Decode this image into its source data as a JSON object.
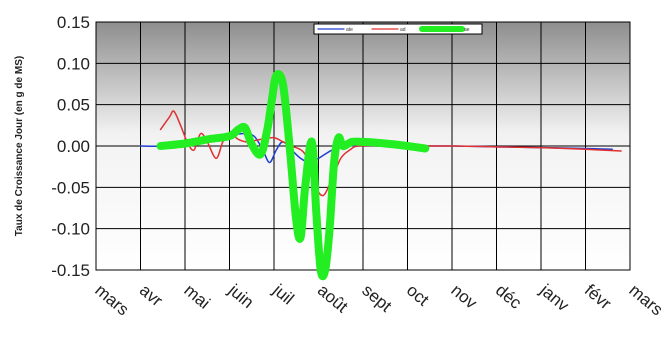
{
  "chart_data": {
    "type": "line",
    "ylabel": "Taux de Croissance Jour (en g de MS)",
    "ylim": [
      -0.15,
      0.15
    ],
    "yticks": [
      -0.15,
      -0.1,
      -0.05,
      0.0,
      0.05,
      0.1,
      0.15
    ],
    "ytick_labels": [
      "-0.15",
      "-0.10",
      "-0.05",
      "0.00",
      "0.05",
      "0.10",
      "0.15"
    ],
    "x_months": [
      "mars",
      "avr",
      "mai",
      "juin",
      "juil",
      "août",
      "sept",
      "oct",
      "nov",
      "déc",
      "janv",
      "févr",
      "mars"
    ],
    "xlim": [
      0,
      12
    ],
    "grid": true,
    "legend_position": "top-right",
    "legend_labels": [
      "ate",
      "ad",
      "ae"
    ],
    "series": [
      {
        "name": "ate",
        "color": "#1f3fd0",
        "width": 1.5,
        "points": [
          [
            1.0,
            0.0
          ],
          [
            1.5,
            0.0
          ],
          [
            2.0,
            0.005
          ],
          [
            2.5,
            0.01
          ],
          [
            3.0,
            0.013
          ],
          [
            3.3,
            0.015
          ],
          [
            3.55,
            0.012
          ],
          [
            3.75,
            -0.005
          ],
          [
            3.9,
            -0.02
          ],
          [
            4.05,
            -0.005
          ],
          [
            4.2,
            0.005
          ],
          [
            4.4,
            -0.005
          ],
          [
            4.6,
            -0.015
          ],
          [
            4.8,
            -0.02
          ],
          [
            5.0,
            -0.015
          ],
          [
            5.3,
            -0.005
          ],
          [
            5.6,
            0.0
          ],
          [
            6.0,
            0.0
          ],
          [
            7.0,
            0.0
          ],
          [
            8.0,
            0.0
          ],
          [
            9.0,
            -0.001
          ],
          [
            10.0,
            -0.002
          ],
          [
            11.0,
            -0.003
          ],
          [
            11.6,
            -0.004
          ]
        ]
      },
      {
        "name": "ad",
        "color": "#e03030",
        "width": 1.5,
        "points": [
          [
            1.45,
            0.02
          ],
          [
            1.65,
            0.035
          ],
          [
            1.75,
            0.042
          ],
          [
            1.9,
            0.025
          ],
          [
            2.05,
            0.005
          ],
          [
            2.2,
            -0.005
          ],
          [
            2.35,
            0.015
          ],
          [
            2.5,
            0.005
          ],
          [
            2.7,
            -0.015
          ],
          [
            2.85,
            0.005
          ],
          [
            3.0,
            0.015
          ],
          [
            3.2,
            0.008
          ],
          [
            3.4,
            0.005
          ],
          [
            3.7,
            0.008
          ],
          [
            4.0,
            0.01
          ],
          [
            4.2,
            0.005
          ],
          [
            4.4,
            0.0
          ],
          [
            4.7,
            -0.01
          ],
          [
            4.9,
            -0.045
          ],
          [
            5.1,
            -0.06
          ],
          [
            5.3,
            -0.04
          ],
          [
            5.5,
            -0.015
          ],
          [
            5.7,
            -0.005
          ],
          [
            5.9,
            0.0
          ],
          [
            6.5,
            0.0
          ],
          [
            7.0,
            0.0
          ],
          [
            8.0,
            0.0
          ],
          [
            9.0,
            -0.001
          ],
          [
            10.0,
            -0.002
          ],
          [
            11.0,
            -0.004
          ],
          [
            11.8,
            -0.006
          ]
        ]
      },
      {
        "name": "ae",
        "color": "#22ee22",
        "width": 8,
        "points": [
          [
            1.45,
            0.0
          ],
          [
            2.0,
            0.003
          ],
          [
            2.5,
            0.008
          ],
          [
            3.0,
            0.012
          ],
          [
            3.2,
            0.02
          ],
          [
            3.35,
            0.022
          ],
          [
            3.5,
            0.002
          ],
          [
            3.7,
            -0.01
          ],
          [
            3.85,
            0.02
          ],
          [
            3.95,
            0.055
          ],
          [
            4.05,
            0.085
          ],
          [
            4.2,
            0.075
          ],
          [
            4.35,
            0.0
          ],
          [
            4.5,
            -0.09
          ],
          [
            4.6,
            -0.11
          ],
          [
            4.7,
            -0.05
          ],
          [
            4.85,
            0.005
          ],
          [
            4.95,
            -0.08
          ],
          [
            5.05,
            -0.15
          ],
          [
            5.15,
            -0.15
          ],
          [
            5.25,
            -0.1
          ],
          [
            5.35,
            -0.02
          ],
          [
            5.45,
            0.01
          ],
          [
            5.55,
            0.0
          ],
          [
            5.75,
            0.005
          ],
          [
            6.0,
            0.005
          ],
          [
            6.3,
            0.004
          ],
          [
            6.7,
            0.002
          ],
          [
            7.0,
            0.0
          ],
          [
            7.4,
            -0.003
          ]
        ]
      }
    ]
  }
}
